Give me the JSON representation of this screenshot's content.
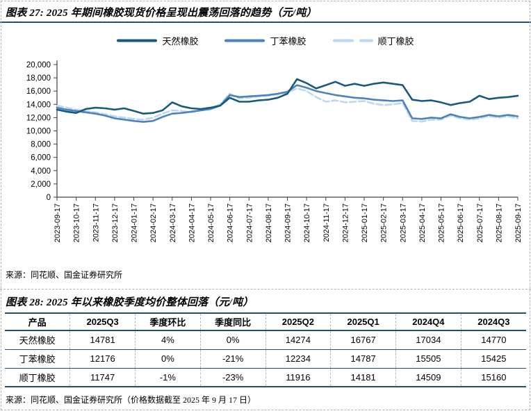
{
  "fig27": {
    "title": "图表 27: 2025 年期间橡胶现货价格呈现出震荡回落的趋势（元/吨）",
    "source": "来源：同花顺、国金证券研究所"
  },
  "fig28": {
    "title": "图表 28: 2025 年以来橡胶季度均价整体回落（元/吨）",
    "source": "来源：同花顺、国金证券研究所（价格数据截至 2025 年 9 月 17 日）",
    "table": {
      "headers": [
        "产品",
        "2025Q3",
        "季度环比",
        "季度同比",
        "2025Q2",
        "2025Q1",
        "2024Q4",
        "2024Q3"
      ],
      "rows": [
        [
          "天然橡胶",
          "14781",
          "4%",
          "0%",
          "14274",
          "16767",
          "17034",
          "14770"
        ],
        [
          "丁苯橡胶",
          "12176",
          "0%",
          "-21%",
          "12234",
          "14787",
          "15505",
          "15425"
        ],
        [
          "顺丁橡胶",
          "11747",
          "-1%",
          "-23%",
          "11916",
          "14181",
          "14509",
          "15160"
        ]
      ]
    }
  },
  "chart_data": {
    "type": "line",
    "title": "",
    "xlabel": "",
    "ylabel": "",
    "ylim": [
      0,
      20000
    ],
    "y_tick_step": 2000,
    "grid": false,
    "legend_position": "top-center",
    "x_tick_labels": [
      "2023-09-17",
      "2023-10-17",
      "2023-11-17",
      "2023-12-17",
      "2024-01-17",
      "2024-02-17",
      "2024-03-17",
      "2024-04-17",
      "2024-05-17",
      "2024-06-17",
      "2024-07-17",
      "2024-08-17",
      "2024-09-17",
      "2024-10-17",
      "2024-11-17",
      "2024-12-17",
      "2025-01-17",
      "2025-02-17",
      "2025-03-17",
      "2025-04-17",
      "2025-05-17",
      "2025-06-17",
      "2025-07-17",
      "2025-08-17",
      "2025-09-17"
    ],
    "series": [
      {
        "name": "天然橡胶",
        "color": "#175A7E",
        "style": "solid",
        "values": [
          13200,
          12900,
          12700,
          13300,
          13500,
          13400,
          13200,
          13400,
          13000,
          12600,
          12700,
          13100,
          14300,
          13700,
          13400,
          13300,
          13500,
          13800,
          15000,
          14400,
          14400,
          14600,
          14700,
          15000,
          15600,
          17800,
          17200,
          16400,
          16900,
          17400,
          16800,
          17100,
          16800,
          17100,
          17300,
          17100,
          16900,
          14700,
          14500,
          14600,
          14300,
          13900,
          14200,
          14400,
          15300,
          14800,
          15000,
          15100,
          15300
        ]
      },
      {
        "name": "丁苯橡胶",
        "color": "#4F81BD",
        "style": "solid",
        "values": [
          13500,
          13200,
          13000,
          12800,
          12600,
          12300,
          11900,
          11700,
          11500,
          11350,
          11500,
          12100,
          12600,
          12700,
          12900,
          13100,
          13300,
          13800,
          15400,
          15100,
          15200,
          15300,
          15400,
          15600,
          15900,
          16900,
          16500,
          16000,
          15700,
          15400,
          15200,
          15000,
          14900,
          14700,
          14600,
          14500,
          14600,
          11900,
          11800,
          12000,
          11900,
          12500,
          12100,
          11900,
          12100,
          12400,
          12200,
          12400,
          12200
        ]
      },
      {
        "name": "顺丁橡胶",
        "color": "#BDD7EE",
        "style": "dashed",
        "values": [
          13800,
          13500,
          13200,
          13000,
          12800,
          12500,
          12200,
          12000,
          11800,
          11700,
          12000,
          12600,
          13100,
          13000,
          12800,
          13100,
          13400,
          14000,
          15600,
          14900,
          15000,
          15200,
          15300,
          15500,
          15800,
          16400,
          16000,
          15100,
          14400,
          14600,
          14300,
          14400,
          14500,
          14100,
          13900,
          14000,
          14200,
          11500,
          11400,
          11700,
          11700,
          12300,
          11900,
          11700,
          11900,
          12200,
          12000,
          12200,
          11900
        ]
      }
    ]
  },
  "colors": {
    "accent_navy": "#1F4E79",
    "axis": "#404040",
    "dashed_border": "#b3b3b3"
  }
}
